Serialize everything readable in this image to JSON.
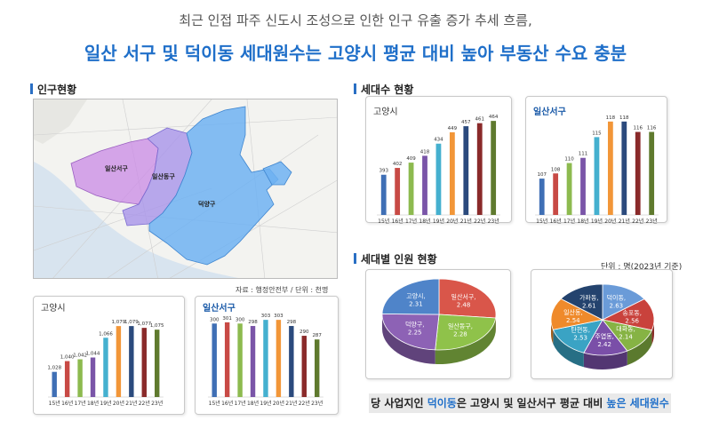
{
  "header": {
    "subtitle": "최근 인접 파주 신도시 조성으로 인한 인구 유출 증가 추세 흐름,",
    "title": "일산 서구 및 덕이동 세대원수는 고양시 평균 대비 높아 부동산 수요 충분"
  },
  "sections": {
    "population": "인구현황",
    "households": "세대수 현황",
    "members": "세대별 인원 현황"
  },
  "map": {
    "labels": {
      "ilsanseo": "일산서구",
      "ilsandong": "일산동구",
      "deogyang": "덕양구"
    },
    "source": "자료 : 행정안전부 / 단위 : 천명"
  },
  "members_unit": "단위 : 명(2023년 기준)",
  "footer": {
    "pre": "당 사업지인 ",
    "hl1": "덕이동",
    "mid": "은 고양시 및 일산서구 평균 대비 ",
    "hl2": "높은 세대원수"
  },
  "chart_data": [
    {
      "id": "pop-goyang",
      "type": "bar",
      "title": "고양시",
      "categories": [
        "15년",
        "16년",
        "17년",
        "18년",
        "19년",
        "20년",
        "21년",
        "22년",
        "23년"
      ],
      "values": [
        1028,
        1040,
        1042,
        1044,
        1066,
        1079,
        1079,
        1077,
        1075
      ],
      "labels": [
        "1,028",
        "1,040",
        "1,042",
        "1,044",
        "1,066",
        "1,079",
        "1,079",
        "1,077",
        "1,075"
      ],
      "ylim": [
        1000,
        1090
      ],
      "colors": [
        "#3f6fb5",
        "#c84a45",
        "#8dba4f",
        "#7a55a8",
        "#45b0cf",
        "#f29638",
        "#2b4a7d",
        "#8a2a2a",
        "#5f7a2e"
      ]
    },
    {
      "id": "pop-ilsanseo",
      "type": "bar",
      "title": "일산서구",
      "categories": [
        "15년",
        "16년",
        "17년",
        "18년",
        "19년",
        "20년",
        "21년",
        "22년",
        "23년"
      ],
      "values": [
        300,
        301,
        300,
        298,
        303,
        303,
        298,
        290,
        287
      ],
      "labels": [
        "300",
        "301",
        "300",
        "298",
        "303",
        "303",
        "298",
        "290",
        "287"
      ],
      "ylim": [
        240,
        306
      ],
      "colors": [
        "#3f6fb5",
        "#c84a45",
        "#8dba4f",
        "#7a55a8",
        "#45b0cf",
        "#f29638",
        "#2b4a7d",
        "#8a2a2a",
        "#5f7a2e"
      ]
    },
    {
      "id": "hh-goyang",
      "type": "bar",
      "title": "고양시",
      "categories": [
        "15년",
        "16년",
        "17년",
        "18년",
        "19년",
        "20년",
        "21년",
        "22년",
        "23년"
      ],
      "values": [
        393,
        402,
        409,
        418,
        434,
        449,
        457,
        461,
        464
      ],
      "labels": [
        "393",
        "402",
        "409",
        "418",
        "434",
        "449",
        "457",
        "461",
        "464"
      ],
      "ylim": [
        340,
        470
      ],
      "colors": [
        "#3f6fb5",
        "#c84a45",
        "#8dba4f",
        "#7a55a8",
        "#45b0cf",
        "#f29638",
        "#2b4a7d",
        "#8a2a2a",
        "#5f7a2e"
      ]
    },
    {
      "id": "hh-ilsanseo",
      "type": "bar",
      "title": "일산서구",
      "categories": [
        "15년",
        "16년",
        "17년",
        "18년",
        "19년",
        "20년",
        "21년",
        "22년",
        "23년"
      ],
      "values": [
        107,
        108,
        110,
        111,
        115,
        118,
        118,
        116,
        116
      ],
      "labels": [
        "107",
        "108",
        "110",
        "111",
        "115",
        "118",
        "118",
        "116",
        "116"
      ],
      "ylim": [
        100,
        119
      ],
      "colors": [
        "#3f6fb5",
        "#c84a45",
        "#8dba4f",
        "#7a55a8",
        "#45b0cf",
        "#f29638",
        "#2b4a7d",
        "#8a2a2a",
        "#5f7a2e"
      ]
    },
    {
      "id": "pie-goyang",
      "type": "pie",
      "slices": [
        {
          "name": "일산서구",
          "value": 2.48,
          "label": "일산서구, 2.48",
          "color": "#d9564a"
        },
        {
          "name": "일산동구",
          "value": 2.28,
          "label": "일산동구, 2.28",
          "color": "#8fc24a"
        },
        {
          "name": "덕양구",
          "value": 2.25,
          "label": "덕양구, 2.25",
          "color": "#8d62b5"
        },
        {
          "name": "고양시",
          "value": 2.31,
          "label": "고양시, 2.31",
          "color": "#4f84c9"
        }
      ]
    },
    {
      "id": "pie-ilsanseo",
      "type": "pie",
      "slices": [
        {
          "name": "덕이동",
          "value": 2.63,
          "label": "덕이동, 2.63",
          "color": "#6a9bd8"
        },
        {
          "name": "송포동",
          "value": 2.56,
          "label": "송포동, 2.56",
          "color": "#c9423c"
        },
        {
          "name": "대화동",
          "value": 2.14,
          "label": "대화동, 2.14",
          "color": "#86b344"
        },
        {
          "name": "주엽동",
          "value": 2.42,
          "label": "주엽동, 2.42",
          "color": "#7a4fa8"
        },
        {
          "name": "탄현동",
          "value": 2.53,
          "label": "탄현동, 2.53",
          "color": "#3aa3c4"
        },
        {
          "name": "일산동",
          "value": 2.54,
          "label": "일산동, 2.54",
          "color": "#ef8a2b"
        },
        {
          "name": "가좌동",
          "value": 2.61,
          "label": "가좌동, 2.61",
          "color": "#24436e"
        }
      ]
    }
  ]
}
